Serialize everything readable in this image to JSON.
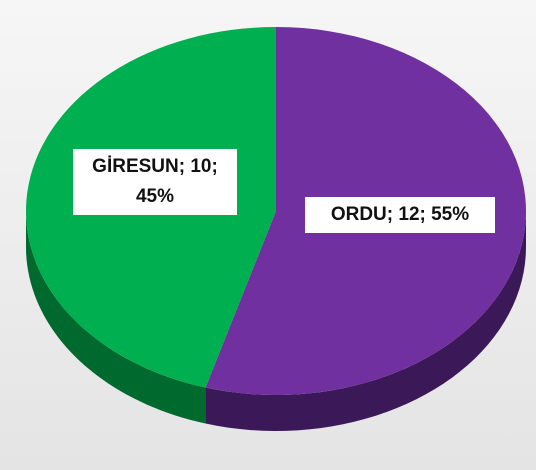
{
  "chart_data": {
    "type": "pie",
    "categories": [
      "ORDU",
      "GİRESUN"
    ],
    "values": [
      12,
      10
    ],
    "value_labels": [
      "ORDU; 12; 55%",
      "GİRESUN; 10; 45%"
    ],
    "colors": [
      "#7030a0",
      "#00b050"
    ],
    "side_colors": [
      "#3b1857",
      "#00692e"
    ]
  }
}
